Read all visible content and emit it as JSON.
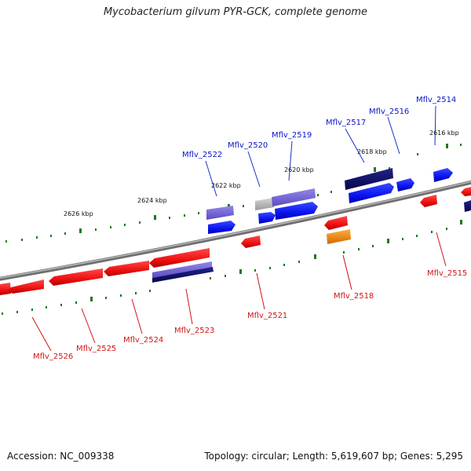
{
  "title": "Mycobacterium gilvum PYR-GCK, complete genome",
  "footer": {
    "accession": "Accession: NC_009338",
    "topology": "Topology: circular; Length: 5,619,607 bp; Genes: 5,295"
  },
  "colors": {
    "forward_gene": "#0a14f0",
    "reverse_gene": "#f01414",
    "forward_label": "#0a14c8",
    "reverse_label": "#d21414",
    "backbone": "#8a8a8a",
    "tick": "#1a7a1a",
    "dark_gene": "#0a0a6e",
    "light_gene": "#7466d4",
    "gray_gene": "#b4b4b4",
    "orange_gene": "#f08c0a"
  },
  "scale_labels": [
    "2626 kbp",
    "2624 kbp",
    "2622 kbp",
    "2620 kbp",
    "2618 kbp",
    "2616 kbp"
  ],
  "forward_labels": [
    "Mflv_2522",
    "Mflv_2520",
    "Mflv_2519",
    "Mflv_2517",
    "Mflv_2516",
    "Mflv_2514"
  ],
  "reverse_labels": [
    "Mflv_2526",
    "Mflv_2525",
    "Mflv_2524",
    "Mflv_2523",
    "Mflv_2521",
    "Mflv_2518",
    "Mflv_2515"
  ]
}
